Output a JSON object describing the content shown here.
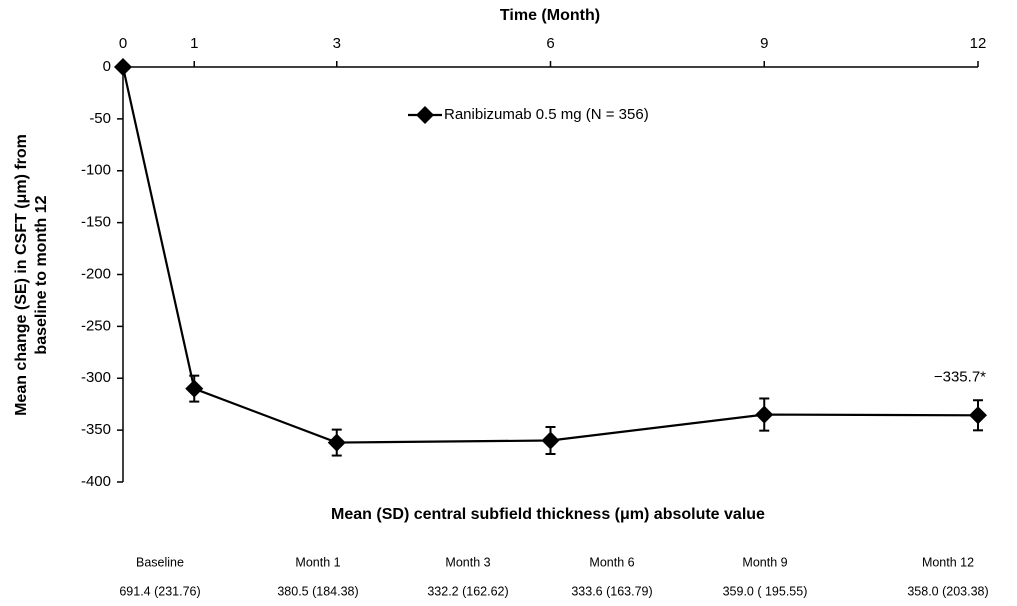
{
  "chart_data": {
    "type": "line",
    "x_label": "Time (Month)",
    "y_label": [
      "Mean change (SE) in CSFT (μm)  from",
      "baseline to month 12"
    ],
    "x": [
      0,
      1,
      3,
      6,
      9,
      12
    ],
    "series": [
      {
        "name": "Ranibizumab 0.5 mg (N = 356)",
        "color": "#000000",
        "values": [
          0,
          -310,
          -362,
          -360,
          -335,
          -335.7
        ],
        "errors": [
          0,
          12.5,
          12.5,
          13,
          15.5,
          14.5
        ],
        "value_labels": [
          null,
          null,
          null,
          null,
          null,
          "−335.7*"
        ]
      }
    ],
    "xlim": [
      0,
      12
    ],
    "xticks": [
      0,
      1,
      3,
      6,
      9,
      12
    ],
    "ylim": [
      -400,
      0
    ],
    "yticks": [
      0,
      -50,
      -100,
      -150,
      -200,
      -250,
      -300,
      -350,
      -400
    ],
    "grid": false
  },
  "table": {
    "title": "Mean (SD) central subfield thickness (μm) absolute value",
    "headers": [
      "Baseline",
      "Month  1",
      "Month 3",
      "Month 6",
      "Month 9",
      "Month 12"
    ],
    "values": [
      "691.4 (231.76)",
      "380.5 (184.38)",
      "332.2 (162.62)",
      "333.6 (163.79)",
      "359.0 ( 195.55)",
      "358.0 (203.38)"
    ]
  }
}
